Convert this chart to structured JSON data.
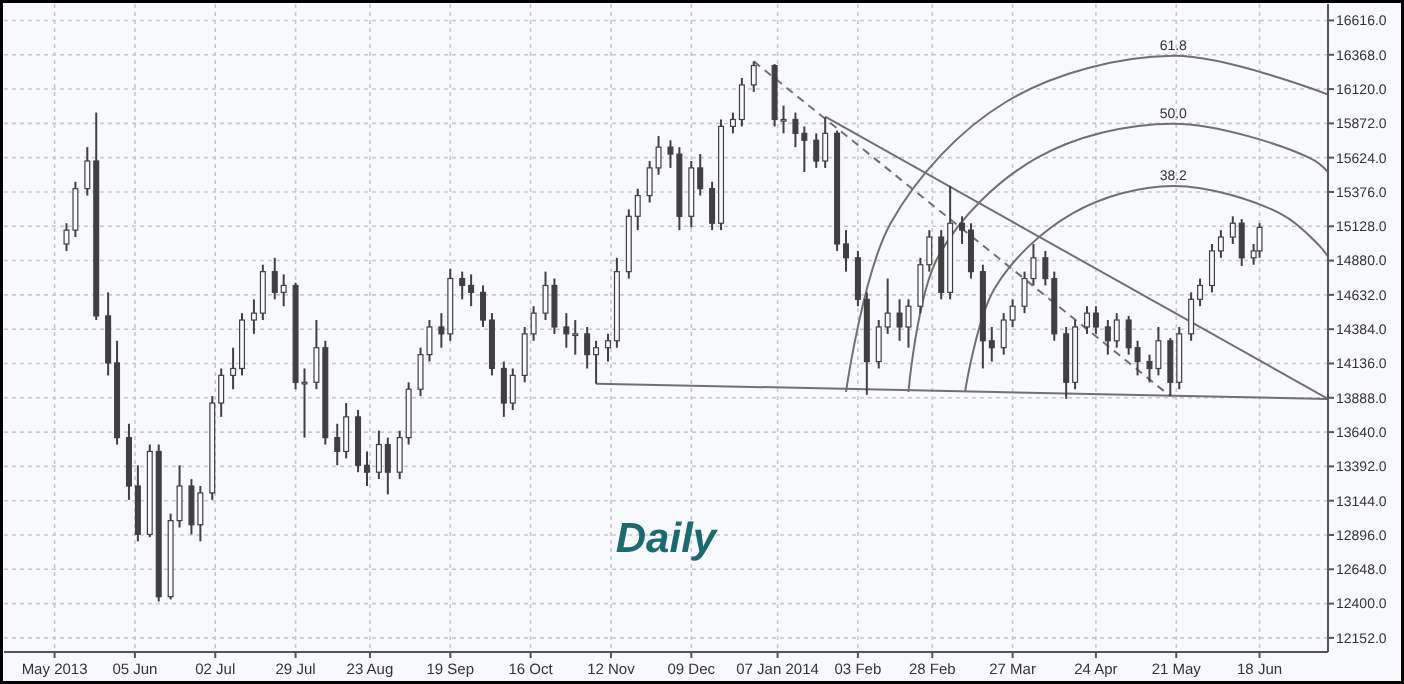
{
  "chart_data": {
    "type": "candlestick",
    "title": "Daily",
    "xlim": [
      "2013-04-22",
      "2014-07-11"
    ],
    "xticks": [
      {
        "value": "2013-05-09",
        "label": "May 2013"
      },
      {
        "value": "2013-06-05",
        "label": "05 Jun"
      },
      {
        "value": "2013-07-02",
        "label": "02 Jul"
      },
      {
        "value": "2013-07-29",
        "label": "29 Jul"
      },
      {
        "value": "2013-08-23",
        "label": "23 Aug"
      },
      {
        "value": "2013-09-19",
        "label": "19 Sep"
      },
      {
        "value": "2013-10-16",
        "label": "16 Oct"
      },
      {
        "value": "2013-11-12",
        "label": "12 Nov"
      },
      {
        "value": "2013-12-09",
        "label": "09 Dec"
      },
      {
        "value": "2014-01-07",
        "label": "07 Jan 2014"
      },
      {
        "value": "2014-02-03",
        "label": "03 Feb"
      },
      {
        "value": "2014-02-28",
        "label": "28 Feb"
      },
      {
        "value": "2014-03-27",
        "label": "27 Mar"
      },
      {
        "value": "2014-04-24",
        "label": "24 Apr"
      },
      {
        "value": "2014-05-21",
        "label": "21 May"
      },
      {
        "value": "2014-06-18",
        "label": "18 Jun"
      }
    ],
    "ylim": [
      12050,
      16735
    ],
    "yticks": [
      {
        "value": 12152,
        "label": "12152.0"
      },
      {
        "value": 12400,
        "label": "12400.0"
      },
      {
        "value": 12648,
        "label": "12648.0"
      },
      {
        "value": 12896,
        "label": "12896.0"
      },
      {
        "value": 13144,
        "label": "13144.0"
      },
      {
        "value": 13392,
        "label": "13392.0"
      },
      {
        "value": 13640,
        "label": "13640.0"
      },
      {
        "value": 13888,
        "label": "13888.0"
      },
      {
        "value": 14136,
        "label": "14136.0"
      },
      {
        "value": 14384,
        "label": "14384.0"
      },
      {
        "value": 14632,
        "label": "14632.0"
      },
      {
        "value": 14880,
        "label": "14880.0"
      },
      {
        "value": 15128,
        "label": "15128.0"
      },
      {
        "value": 15376,
        "label": "15376.0"
      },
      {
        "value": 15624,
        "label": "15624.0"
      },
      {
        "value": 15872,
        "label": "15872.0"
      },
      {
        "value": 16120,
        "label": "16120.0"
      },
      {
        "value": 16368,
        "label": "16368.0"
      },
      {
        "value": 16616,
        "label": "16616.0"
      }
    ],
    "grid": true,
    "annotations": [
      {
        "text": "38.2",
        "x": "2014-05-20",
        "y": 15420
      },
      {
        "text": "50.0",
        "x": "2014-05-20",
        "y": 15870
      },
      {
        "text": "61.8",
        "x": "2014-05-20",
        "y": 16360
      }
    ],
    "series": [
      {
        "type": "line",
        "color": "#707070",
        "x": [
          "2013-11-07",
          "2014-07-11"
        ],
        "values": [
          13990,
          13880
        ]
      },
      {
        "type": "line",
        "color": "#707070",
        "x": [
          "2014-01-23",
          "2014-07-11"
        ],
        "values": [
          15920,
          13880
        ]
      },
      {
        "type": "line",
        "color": "#707070",
        "line_style": "dashed",
        "x": [
          "2013-12-30",
          "2014-05-19"
        ],
        "values": [
          16320,
          13900
        ]
      },
      {
        "type": "line",
        "color": "#707070",
        "x": [
          "2014-03-11",
          "2014-03-21",
          "2014-04-16",
          "2014-05-20",
          "2014-06-25",
          "2014-07-08",
          "2014-07-11"
        ],
        "values": [
          13930,
          14680,
          15220,
          15420,
          15220,
          14990,
          14910
        ]
      },
      {
        "type": "line",
        "color": "#707070",
        "x": [
          "2014-02-20",
          "2014-03-02",
          "2014-04-04",
          "2014-05-20",
          "2014-07-05",
          "2014-07-11"
        ],
        "values": [
          13930,
          14910,
          15620,
          15870,
          15620,
          15520
        ]
      },
      {
        "type": "line",
        "color": "#707070",
        "x": [
          "2014-01-30",
          "2014-02-14",
          "2014-03-25",
          "2014-05-20",
          "2014-07-11"
        ],
        "values": [
          13930,
          15150,
          16030,
          16360,
          16080
        ]
      }
    ],
    "color": "#404040",
    "x": [
      "2013-05-13",
      "2013-05-16",
      "2013-05-20",
      "2013-05-23",
      "2013-05-27",
      "2013-05-30",
      "2013-06-03",
      "2013-06-06",
      "2013-06-10",
      "2013-06-13",
      "2013-06-17",
      "2013-06-20",
      "2013-06-24",
      "2013-06-27",
      "2013-07-01",
      "2013-07-04",
      "2013-07-08",
      "2013-07-11",
      "2013-07-15",
      "2013-07-18",
      "2013-07-22",
      "2013-07-25",
      "2013-07-29",
      "2013-08-01",
      "2013-08-05",
      "2013-08-08",
      "2013-08-12",
      "2013-08-15",
      "2013-08-19",
      "2013-08-22",
      "2013-08-26",
      "2013-08-29",
      "2013-09-02",
      "2013-09-05",
      "2013-09-09",
      "2013-09-12",
      "2013-09-16",
      "2013-09-19",
      "2013-09-23",
      "2013-09-26",
      "2013-09-30",
      "2013-10-03",
      "2013-10-07",
      "2013-10-10",
      "2013-10-14",
      "2013-10-17",
      "2013-10-21",
      "2013-10-24",
      "2013-10-28",
      "2013-10-31",
      "2013-11-04",
      "2013-11-07",
      "2013-11-11",
      "2013-11-14",
      "2013-11-18",
      "2013-11-21",
      "2013-11-25",
      "2013-11-28",
      "2013-12-02",
      "2013-12-05",
      "2013-12-09",
      "2013-12-12",
      "2013-12-16",
      "2013-12-19",
      "2013-12-23",
      "2013-12-26",
      "2013-12-30",
      "2014-01-06",
      "2014-01-09",
      "2014-01-13",
      "2014-01-16",
      "2014-01-20",
      "2014-01-23",
      "2014-01-27",
      "2014-01-30",
      "2014-02-03",
      "2014-02-06",
      "2014-02-10",
      "2014-02-13",
      "2014-02-17",
      "2014-02-20",
      "2014-02-24",
      "2014-02-27",
      "2014-03-03",
      "2014-03-06",
      "2014-03-10",
      "2014-03-13",
      "2014-03-17",
      "2014-03-20",
      "2014-03-24",
      "2014-03-27",
      "2014-03-31",
      "2014-04-03",
      "2014-04-07",
      "2014-04-10",
      "2014-04-14",
      "2014-04-17",
      "2014-04-21",
      "2014-04-24",
      "2014-04-28",
      "2014-05-01",
      "2014-05-05",
      "2014-05-08",
      "2014-05-12",
      "2014-05-15",
      "2014-05-19",
      "2014-05-22",
      "2014-05-26",
      "2014-05-29",
      "2014-06-02",
      "2014-06-05",
      "2014-06-09",
      "2014-06-12",
      "2014-06-16",
      "2014-06-18"
    ],
    "ohlc": [
      [
        15000,
        15150,
        14950,
        15100
      ],
      [
        15100,
        15450,
        15050,
        15400
      ],
      [
        15400,
        15700,
        15350,
        15600
      ],
      [
        15600,
        15950,
        14450,
        14480
      ],
      [
        14480,
        14650,
        14050,
        14140
      ],
      [
        14140,
        14300,
        13550,
        13600
      ],
      [
        13600,
        13700,
        13150,
        13250
      ],
      [
        13250,
        13400,
        12850,
        12900
      ],
      [
        12900,
        13550,
        12880,
        13500
      ],
      [
        13500,
        13550,
        12415,
        12450
      ],
      [
        12450,
        13050,
        12430,
        13000
      ],
      [
        13000,
        13400,
        12950,
        13250
      ],
      [
        13250,
        13300,
        12900,
        12970
      ],
      [
        12970,
        13250,
        12850,
        13200
      ],
      [
        13200,
        13900,
        13150,
        13850
      ],
      [
        13850,
        14100,
        13750,
        14050
      ],
      [
        14050,
        14250,
        13950,
        14100
      ],
      [
        14100,
        14500,
        14050,
        14450
      ],
      [
        14450,
        14600,
        14350,
        14500
      ],
      [
        14500,
        14850,
        14450,
        14800
      ],
      [
        14800,
        14900,
        14600,
        14650
      ],
      [
        14650,
        14780,
        14550,
        14700
      ],
      [
        14700,
        14720,
        13950,
        14000
      ],
      [
        14000,
        14100,
        13600,
        14000
      ],
      [
        14000,
        14450,
        13950,
        14250
      ],
      [
        14250,
        14300,
        13550,
        13600
      ],
      [
        13600,
        13700,
        13400,
        13500
      ],
      [
        13500,
        13850,
        13450,
        13750
      ],
      [
        13750,
        13800,
        13350,
        13400
      ],
      [
        13400,
        13500,
        13250,
        13350
      ],
      [
        13350,
        13650,
        13300,
        13550
      ],
      [
        13550,
        13600,
        13190,
        13350
      ],
      [
        13350,
        13650,
        13300,
        13600
      ],
      [
        13600,
        14000,
        13550,
        13950
      ],
      [
        13950,
        14250,
        13900,
        14200
      ],
      [
        14200,
        14450,
        14150,
        14400
      ],
      [
        14400,
        14500,
        14250,
        14350
      ],
      [
        14350,
        14820,
        14300,
        14750
      ],
      [
        14750,
        14800,
        14600,
        14700
      ],
      [
        14700,
        14780,
        14550,
        14650
      ],
      [
        14650,
        14700,
        14400,
        14450
      ],
      [
        14450,
        14500,
        14050,
        14100
      ],
      [
        14100,
        14150,
        13750,
        13850
      ],
      [
        13850,
        14100,
        13800,
        14050
      ],
      [
        14050,
        14400,
        14000,
        14350
      ],
      [
        14350,
        14550,
        14300,
        14500
      ],
      [
        14500,
        14800,
        14450,
        14700
      ],
      [
        14700,
        14750,
        14350,
        14400
      ],
      [
        14400,
        14500,
        14250,
        14350
      ],
      [
        14350,
        14450,
        14200,
        14350
      ],
      [
        14350,
        14400,
        14100,
        14200
      ],
      [
        14200,
        14300,
        13990,
        14250
      ],
      [
        14250,
        14350,
        14150,
        14300
      ],
      [
        14300,
        14900,
        14250,
        14800
      ],
      [
        14800,
        15250,
        14750,
        15200
      ],
      [
        15200,
        15400,
        15100,
        15350
      ],
      [
        15350,
        15600,
        15300,
        15550
      ],
      [
        15550,
        15780,
        15500,
        15700
      ],
      [
        15700,
        15750,
        15550,
        15650
      ],
      [
        15650,
        15700,
        15100,
        15200
      ],
      [
        15200,
        15600,
        15120,
        15550
      ],
      [
        15550,
        15650,
        15350,
        15400
      ],
      [
        15400,
        15450,
        15100,
        15150
      ],
      [
        15150,
        15900,
        15100,
        15850
      ],
      [
        15850,
        15950,
        15800,
        15900
      ],
      [
        15900,
        16200,
        15850,
        16150
      ],
      [
        16150,
        16320,
        16100,
        16290
      ],
      [
        16290,
        16300,
        15850,
        15900
      ],
      [
        15900,
        16000,
        15800,
        15900
      ],
      [
        15900,
        15950,
        15700,
        15800
      ],
      [
        15800,
        15850,
        15520,
        15750
      ],
      [
        15750,
        15800,
        15550,
        15600
      ],
      [
        15600,
        15915,
        15550,
        15800
      ],
      [
        15800,
        15820,
        14950,
        15000
      ],
      [
        15000,
        15100,
        14800,
        14900
      ],
      [
        14900,
        14950,
        14550,
        14600
      ],
      [
        14600,
        14650,
        13910,
        14150
      ],
      [
        14150,
        14450,
        14100,
        14400
      ],
      [
        14400,
        14750,
        14350,
        14500
      ],
      [
        14500,
        14600,
        14300,
        14400
      ],
      [
        14400,
        14600,
        14250,
        14550
      ],
      [
        14550,
        14900,
        14500,
        14850
      ],
      [
        14850,
        15100,
        14800,
        15050
      ],
      [
        15050,
        15100,
        14600,
        14650
      ],
      [
        14650,
        15420,
        14600,
        15150
      ],
      [
        15150,
        15200,
        15000,
        15100
      ],
      [
        15100,
        15150,
        14750,
        14800
      ],
      [
        14800,
        14850,
        14100,
        14300
      ],
      [
        14300,
        14400,
        14150,
        14250
      ],
      [
        14250,
        14500,
        14200,
        14450
      ],
      [
        14450,
        14600,
        14400,
        14550
      ],
      [
        14550,
        14800,
        14500,
        14750
      ],
      [
        14750,
        15000,
        14700,
        14900
      ],
      [
        14900,
        14950,
        14700,
        14750
      ],
      [
        14750,
        14800,
        14300,
        14350
      ],
      [
        14350,
        14400,
        13880,
        14000
      ],
      [
        14000,
        14450,
        13950,
        14400
      ],
      [
        14400,
        14550,
        14350,
        14500
      ],
      [
        14500,
        14550,
        14350,
        14400
      ],
      [
        14400,
        14450,
        14200,
        14300
      ],
      [
        14300,
        14500,
        14250,
        14450
      ],
      [
        14450,
        14480,
        14200,
        14250
      ],
      [
        14250,
        14300,
        14050,
        14150
      ],
      [
        14150,
        14200,
        14000,
        14100
      ],
      [
        14100,
        14400,
        14050,
        14300
      ],
      [
        14300,
        14320,
        13900,
        14000
      ],
      [
        14000,
        14400,
        13950,
        14350
      ],
      [
        14350,
        14650,
        14300,
        14600
      ],
      [
        14600,
        14750,
        14550,
        14700
      ],
      [
        14700,
        15000,
        14650,
        14950
      ],
      [
        14950,
        15100,
        14900,
        15050
      ],
      [
        15050,
        15200,
        15000,
        15150
      ],
      [
        15150,
        15180,
        14840,
        14900
      ],
      [
        14900,
        15000,
        14850,
        14950
      ],
      [
        14950,
        15150,
        14900,
        15120
      ]
    ]
  }
}
